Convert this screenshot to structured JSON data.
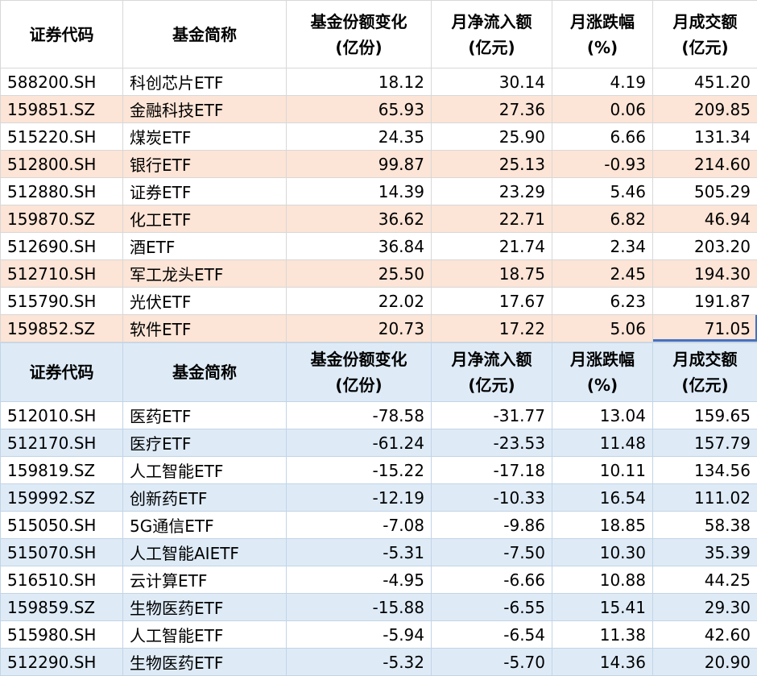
{
  "columns": [
    {
      "title": "证券代码",
      "unit": ""
    },
    {
      "title": "基金简称",
      "unit": ""
    },
    {
      "title": "基金份额变化",
      "unit": "(亿份)"
    },
    {
      "title": "月净流入额",
      "unit": "(亿元)"
    },
    {
      "title": "月涨跌幅",
      "unit": "(%)"
    },
    {
      "title": "月成交额",
      "unit": "(亿元)"
    }
  ],
  "colors": {
    "inflow_band": "#fce4d6",
    "outflow_band": "#deebf7",
    "outflow_header_bg": "#deebf7",
    "inflow_grid": "#d8d8d8",
    "outflow_grid": "#c2d4e6",
    "selection_blue": "#4472c4"
  },
  "chart_data": [
    {
      "type": "table",
      "columns": [
        "证券代码",
        "基金简称",
        "基金份额变化(亿份)",
        "月净流入额(亿元)",
        "月涨跌幅(%)",
        "月成交额(亿元)"
      ],
      "rows": [
        [
          "588200.SH",
          "科创芯片ETF",
          "18.12",
          "30.14",
          "4.19",
          "451.20"
        ],
        [
          "159851.SZ",
          "金融科技ETF",
          "65.93",
          "27.36",
          "0.06",
          "209.85"
        ],
        [
          "515220.SH",
          "煤炭ETF",
          "24.35",
          "25.90",
          "6.66",
          "131.34"
        ],
        [
          "512800.SH",
          "银行ETF",
          "99.87",
          "25.13",
          "-0.93",
          "214.60"
        ],
        [
          "512880.SH",
          "证券ETF",
          "14.39",
          "23.29",
          "5.46",
          "505.29"
        ],
        [
          "159870.SZ",
          "化工ETF",
          "36.62",
          "22.71",
          "6.82",
          "46.94"
        ],
        [
          "512690.SH",
          "酒ETF",
          "36.84",
          "21.74",
          "2.34",
          "203.20"
        ],
        [
          "512710.SH",
          "军工龙头ETF",
          "25.50",
          "18.75",
          "2.45",
          "194.30"
        ],
        [
          "515790.SH",
          "光伏ETF",
          "22.02",
          "17.67",
          "6.23",
          "191.87"
        ],
        [
          "159852.SZ",
          "软件ETF",
          "20.73",
          "17.22",
          "5.06",
          "71.05"
        ]
      ]
    },
    {
      "type": "table",
      "columns": [
        "证券代码",
        "基金简称",
        "基金份额变化(亿份)",
        "月净流入额(亿元)",
        "月涨跌幅(%)",
        "月成交额(亿元)"
      ],
      "rows": [
        [
          "512010.SH",
          "医药ETF",
          "-78.58",
          "-31.77",
          "13.04",
          "159.65"
        ],
        [
          "512170.SH",
          "医疗ETF",
          "-61.24",
          "-23.53",
          "11.48",
          "157.79"
        ],
        [
          "159819.SZ",
          "人工智能ETF",
          "-15.22",
          "-17.18",
          "10.11",
          "134.56"
        ],
        [
          "159992.SZ",
          "创新药ETF",
          "-12.19",
          "-10.33",
          "16.54",
          "111.02"
        ],
        [
          "515050.SH",
          "5G通信ETF",
          "-7.08",
          "-9.86",
          "18.85",
          "58.38"
        ],
        [
          "515070.SH",
          "人工智能AIETF",
          "-5.31",
          "-7.50",
          "10.30",
          "35.39"
        ],
        [
          "516510.SH",
          "云计算ETF",
          "-4.95",
          "-6.66",
          "10.88",
          "44.25"
        ],
        [
          "159859.SZ",
          "生物医药ETF",
          "-15.88",
          "-6.55",
          "15.41",
          "29.30"
        ],
        [
          "515980.SH",
          "人工智能ETF",
          "-5.94",
          "-6.54",
          "11.38",
          "42.60"
        ],
        [
          "512290.SH",
          "生物医药ETF",
          "-5.32",
          "-5.70",
          "14.36",
          "20.90"
        ]
      ]
    }
  ]
}
